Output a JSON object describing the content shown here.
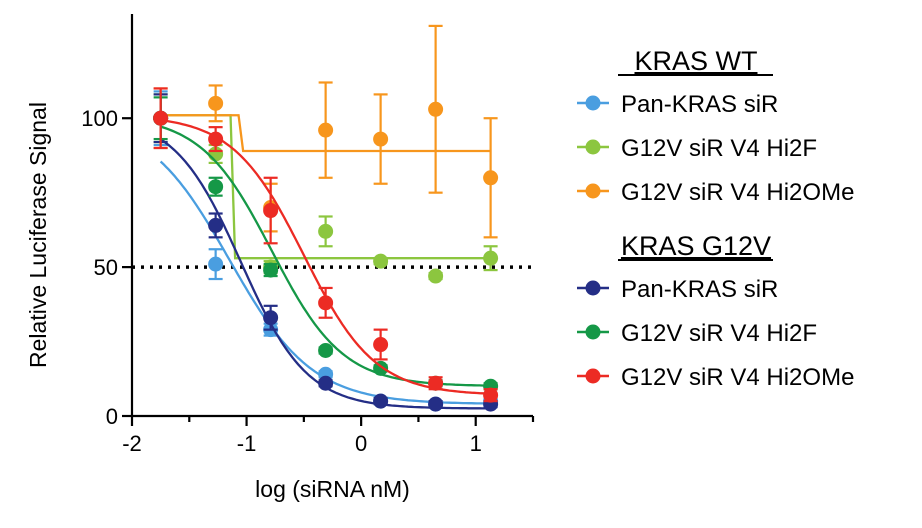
{
  "chart_data": {
    "type": "scatter",
    "title": "",
    "xlabel": "log (siRNA nM)",
    "ylabel": "Relative Luciferase Signal",
    "xlim": [
      -2,
      1.5
    ],
    "ylim": [
      0,
      135
    ],
    "xticks": [
      -2,
      -1,
      0,
      1
    ],
    "xtick_labels": [
      "-2",
      "-1",
      "0",
      "1"
    ],
    "yticks": [
      0,
      50,
      100
    ],
    "ytick_labels": [
      "0",
      "50",
      "100"
    ],
    "reference_line": 50,
    "x": [
      -1.75,
      -1.27,
      -0.79,
      -0.31,
      0.17,
      0.65,
      1.13
    ],
    "groups": [
      {
        "title": "KRAS WT",
        "series": [
          {
            "name": "Pan-KRAS siR",
            "color": "#4a9ee0",
            "fit": "sigmoid",
            "values": [
              100,
              51,
              29,
              14,
              5,
              4,
              5
            ],
            "errors": [
              9,
              5,
              2,
              1,
              1,
              1,
              1
            ],
            "fit_params": {
              "top": 101,
              "bottom": 4,
              "logec50": -1.15,
              "hill": 1.2
            }
          },
          {
            "name": "G12V siR V4 Hi2F",
            "color": "#8cc63f",
            "fit": "step",
            "values": [
              100,
              88,
              50,
              62,
              52,
              47,
              53
            ],
            "errors": [
              8,
              3,
              2,
              5,
              1,
              1,
              4
            ],
            "fit_params": {
              "top": 101,
              "bottom": 53,
              "logec50": -1.12
            }
          },
          {
            "name": "G12V siR V4 Hi2OMe",
            "color": "#f7961d",
            "fit": "step",
            "values": [
              100,
              105,
              70,
              96,
              93,
              103,
              80
            ],
            "errors": [
              10,
              6,
              8,
              16,
              15,
              28,
              20
            ],
            "fit_params": {
              "top": 101,
              "bottom": 89,
              "logec50": -1.05
            }
          }
        ]
      },
      {
        "title": "KRAS G12V",
        "series": [
          {
            "name": "Pan-KRAS siR",
            "color": "#242e86",
            "fit": "sigmoid",
            "values": [
              100,
              64,
              33,
              11,
              5,
              4,
              4
            ],
            "errors": [
              8,
              4,
              4,
              1,
              1,
              1,
              1
            ],
            "fit_params": {
              "top": 101,
              "bottom": 2.5,
              "logec50": -1.05,
              "hill": 1.5
            }
          },
          {
            "name": "G12V siR V4 Hi2F",
            "color": "#159847",
            "fit": "sigmoid",
            "values": [
              100,
              77,
              49,
              22,
              16,
              11,
              10
            ],
            "errors": [
              7,
              3,
              2,
              1,
              1,
              1,
              1
            ],
            "fit_params": {
              "top": 101,
              "bottom": 10,
              "logec50": -0.78,
              "hill": 1.4
            }
          },
          {
            "name": "G12V siR V4 Hi2OMe",
            "color": "#ec2b24",
            "fit": "sigmoid",
            "values": [
              100,
              93,
              69,
              38,
              24,
              11,
              7
            ],
            "errors": [
              10,
              4,
              11,
              5,
              5,
              2,
              2
            ],
            "fit_params": {
              "top": 101,
              "bottom": 7,
              "logec50": -0.5,
              "hill": 1.4
            }
          }
        ]
      }
    ]
  }
}
